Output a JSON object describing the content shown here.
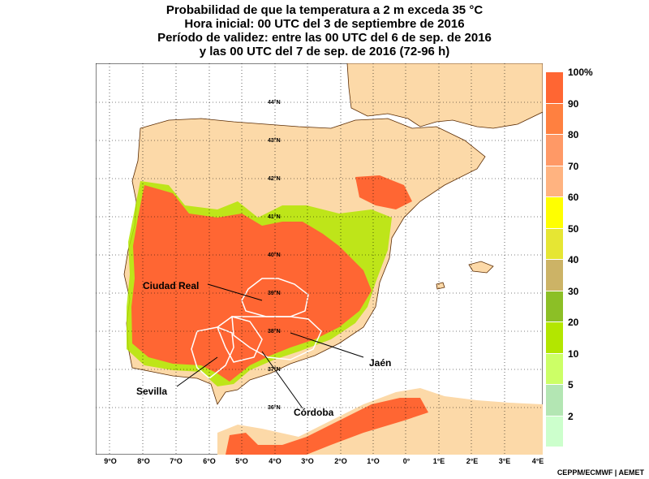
{
  "title": {
    "line1": "Probabilidad de que la temperatura a 2 m exceda 35 °C",
    "line2": "Hora inicial: 00 UTC del 3 de septiembre de 2016",
    "line3": "Período de validez: entre las 00 UTC del 6 de sep. de 2016",
    "line4": "y las 00 UTC del 7 de sep. de 2016 (72-96 h)"
  },
  "lon_labels": [
    "9°O",
    "8°O",
    "7°O",
    "6°O",
    "5°O",
    "4°O",
    "3°O",
    "2°O",
    "1°O",
    "0°",
    "1°E",
    "2°E",
    "3°E",
    "4°E"
  ],
  "lat_labels": [
    "44°N",
    "43°N",
    "42°N",
    "41°N",
    "40°N",
    "39°N",
    "38°N",
    "37°N",
    "36°N"
  ],
  "legend": {
    "ticks": [
      "100%",
      "90",
      "80",
      "70",
      "60",
      "50",
      "40",
      "30",
      "20",
      "10",
      "5",
      "2"
    ],
    "colors": [
      "#ff6633",
      "#ff8040",
      "#ff9966",
      "#ffb380",
      "#ffff00",
      "#e6e633",
      "#ccb366",
      "#8cbf26",
      "#b3e600",
      "#ccff66",
      "#b3e6b3",
      "#ccffcc"
    ]
  },
  "cities": {
    "ciudad_real": "Ciudad Real",
    "jaen": "Jaén",
    "sevilla": "Sevilla",
    "cordoba": "Córdoba"
  },
  "credit": "CEPPM/ECMWF | AEMET",
  "colors": {
    "sea": "#ffffff",
    "land_low": "#fcd9a8",
    "high": "#ff6633"
  }
}
